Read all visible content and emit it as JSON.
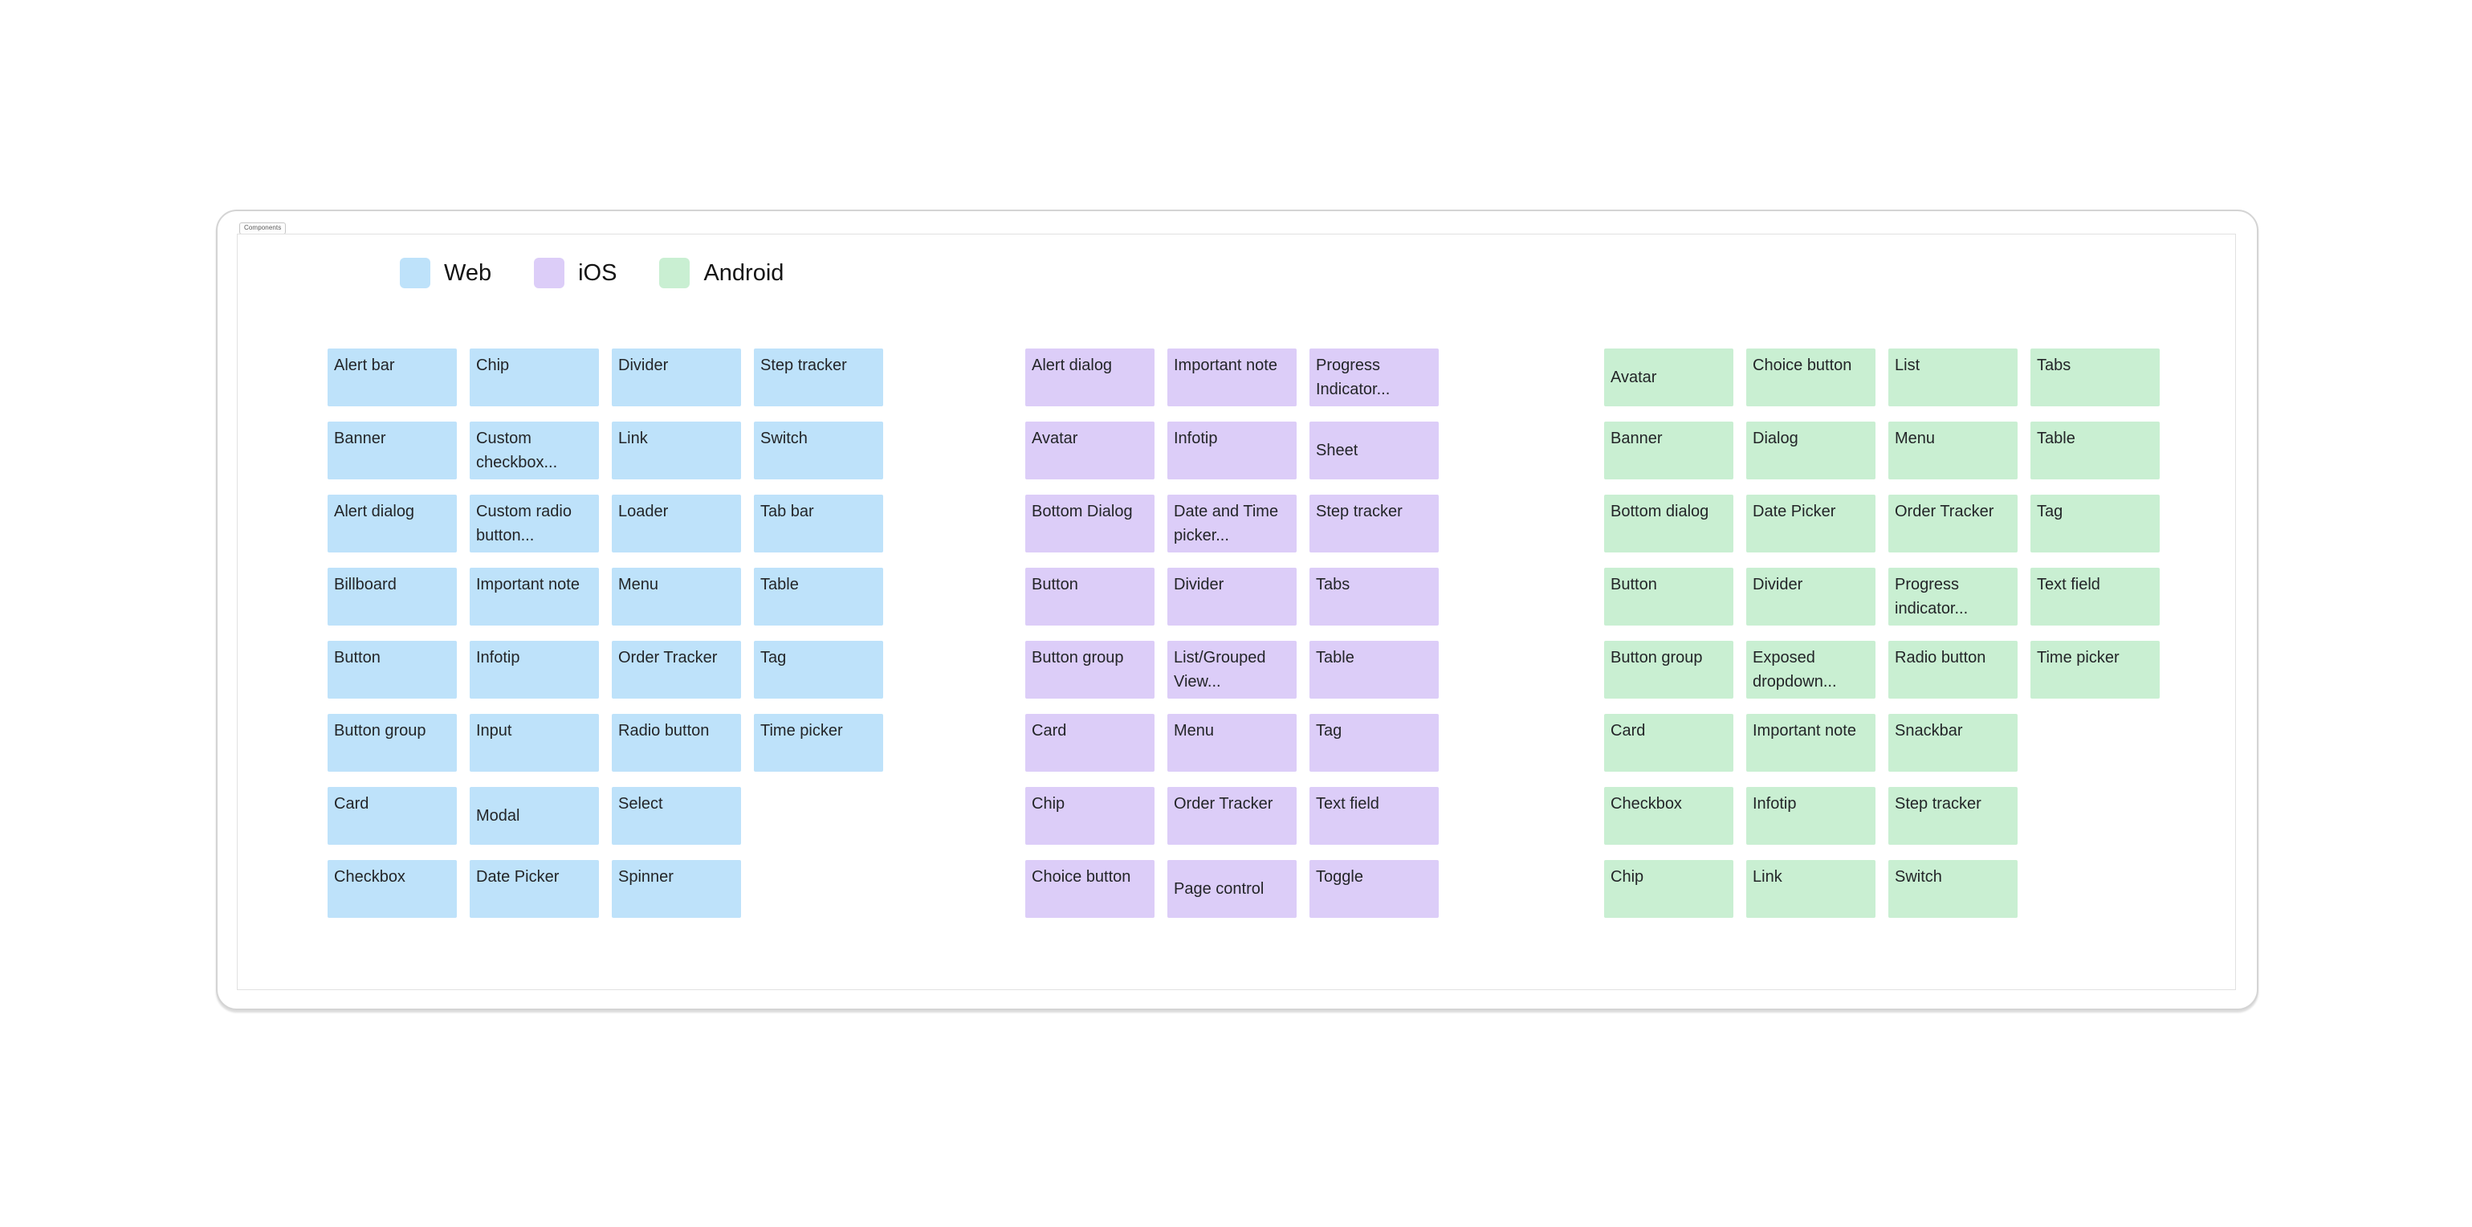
{
  "frame": {
    "tab_label": "Components"
  },
  "legend": {
    "items": [
      {
        "id": "web",
        "label": "Web",
        "color": "#BEE2FA"
      },
      {
        "id": "ios",
        "label": "iOS",
        "color": "#DCCDF8"
      },
      {
        "id": "android",
        "label": "Android",
        "color": "#C9EFD2"
      }
    ]
  },
  "board": {
    "groups": [
      {
        "id": "web",
        "platform": "Web",
        "color": "#BEE2FA",
        "columns": 4,
        "rows": [
          [
            "Alert bar",
            "Chip",
            "Divider",
            "Step tracker"
          ],
          [
            "Banner",
            "Custom checkbox...",
            "Link",
            "Switch"
          ],
          [
            "Alert dialog",
            "Custom radio button...",
            "Loader",
            "Tab bar"
          ],
          [
            "Billboard",
            "Important note",
            "Menu",
            "Table"
          ],
          [
            "Button",
            "Infotip",
            "Order Tracker",
            "Tag"
          ],
          [
            "Button group",
            "Input",
            "Radio button",
            "Time picker"
          ],
          [
            "Card",
            {
              "label": "Modal",
              "valign": "middle"
            },
            "Select",
            null
          ],
          [
            "Checkbox",
            "Date Picker",
            "Spinner",
            null
          ]
        ]
      },
      {
        "id": "ios",
        "platform": "iOS",
        "color": "#DCCDF8",
        "columns": 3,
        "rows": [
          [
            "Alert dialog",
            "Important note",
            "Progress Indicator..."
          ],
          [
            "Avatar",
            "Infotip",
            {
              "label": "Sheet",
              "valign": "middle"
            }
          ],
          [
            "Bottom Dialog",
            "Date and Time picker...",
            "Step tracker"
          ],
          [
            "Button",
            "Divider",
            "Tabs"
          ],
          [
            "Button group",
            "List/Grouped View...",
            "Table"
          ],
          [
            "Card",
            "Menu",
            "Tag"
          ],
          [
            "Chip",
            "Order Tracker",
            "Text field"
          ],
          [
            "Choice button",
            {
              "label": "Page control",
              "valign": "middle"
            },
            "Toggle"
          ]
        ]
      },
      {
        "id": "android",
        "platform": "Android",
        "color": "#C9EFD2",
        "columns": 4,
        "rows": [
          [
            {
              "label": "Avatar",
              "valign": "middle"
            },
            "Choice button",
            "List",
            "Tabs"
          ],
          [
            "Banner",
            "Dialog",
            "Menu",
            "Table"
          ],
          [
            "Bottom dialog",
            "Date Picker",
            "Order Tracker",
            "Tag"
          ],
          [
            "Button",
            "Divider",
            "Progress indicator...",
            "Text field"
          ],
          [
            "Button group",
            "Exposed dropdown...",
            "Radio button",
            "Time picker"
          ],
          [
            "Card",
            "Important note",
            "Snackbar",
            null
          ],
          [
            "Checkbox",
            "Infotip",
            "Step tracker",
            null
          ],
          [
            "Chip",
            "Link",
            "Switch",
            null
          ]
        ]
      }
    ]
  }
}
